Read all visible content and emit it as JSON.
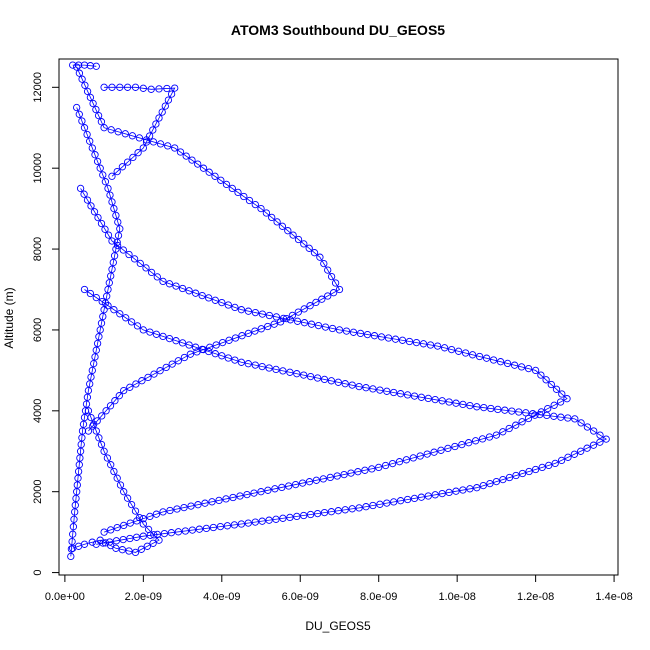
{
  "chart_data": {
    "type": "scatter",
    "title": "ATOM3 Southbound DU_GEOS5",
    "xlabel": "DU_GEOS5",
    "ylabel": "Altitude (m)",
    "xlim": [
      -1.5e-10,
      1.41e-08
    ],
    "ylim": [
      -60,
      12700
    ],
    "x_ticks": [
      0,
      2e-09,
      4e-09,
      6e-09,
      8e-09,
      1e-08,
      1.2e-08,
      1.4e-08
    ],
    "x_tick_labels": [
      "0.0e+00",
      "2.0e-09",
      "4.0e-09",
      "6.0e-09",
      "8.0e-09",
      "1.0e-08",
      "1.2e-08",
      "1.4e-08"
    ],
    "y_ticks": [
      0,
      2000,
      4000,
      6000,
      8000,
      10000,
      12000
    ],
    "y_tick_labels": [
      "0",
      "2000",
      "4000",
      "6000",
      "8000",
      "10000",
      "12000"
    ],
    "grid": false,
    "marker": "open-circle",
    "color": "#0000ff",
    "series": [
      {
        "x": [
          3e-10,
          1e-09,
          2.8e-09,
          5e-09,
          6.5e-09,
          7e-09,
          5.5e-09,
          3.2e-09,
          1.5e-09,
          6e-10
        ],
        "y": [
          12500,
          11000,
          10500,
          9000,
          7800,
          7000,
          6200,
          5400,
          4500,
          3500
        ]
      },
      {
        "x": [
          4e-10,
          1.2e-09,
          2.5e-09,
          4.5e-09,
          7e-09,
          9.5e-09,
          1.2e-08,
          1.28e-08,
          1.1e-08,
          8e-09,
          5e-09,
          2.5e-09,
          1e-09
        ],
        "y": [
          9500,
          8200,
          7200,
          6500,
          6000,
          5600,
          5000,
          4300,
          3400,
          2600,
          2000,
          1500,
          1000
        ]
      },
      {
        "x": [
          5e-10,
          2e-09,
          4.5e-09,
          7.5e-09,
          1.05e-08,
          1.3e-08,
          1.38e-08,
          1.25e-08,
          1.05e-08,
          7.5e-09,
          4.5e-09,
          2e-09,
          8e-10
        ],
        "y": [
          7000,
          6000,
          5200,
          4600,
          4100,
          3800,
          3300,
          2700,
          2100,
          1600,
          1200,
          900,
          700
        ]
      },
      {
        "x": [
          1.5e-10,
          2.5e-10,
          3.5e-10,
          4.5e-10,
          6e-10,
          8e-10,
          1e-09,
          1.2e-09,
          1.4e-09,
          1.1e-09,
          7e-10,
          3e-10
        ],
        "y": [
          400,
          1500,
          2500,
          3500,
          4500,
          5500,
          6500,
          7500,
          8500,
          9500,
          10500,
          11500
        ]
      },
      {
        "x": [
          2e-10,
          5e-10,
          9e-10,
          1.3e-09,
          1.8e-09,
          2.4e-09,
          2e-09,
          1.5e-09,
          1e-09,
          6e-10
        ],
        "y": [
          600,
          700,
          800,
          600,
          500,
          800,
          1200,
          2000,
          3000,
          4000
        ]
      },
      {
        "x": [
          1e-09,
          1.8e-09,
          2.2e-09,
          2.8e-09,
          2e-09,
          1.2e-09
        ],
        "y": [
          12000,
          12000,
          11950,
          11980,
          10500,
          9800
        ]
      },
      {
        "x": [
          2e-10,
          5e-10,
          8e-10
        ],
        "y": [
          12550,
          12550,
          12520
        ]
      }
    ]
  }
}
